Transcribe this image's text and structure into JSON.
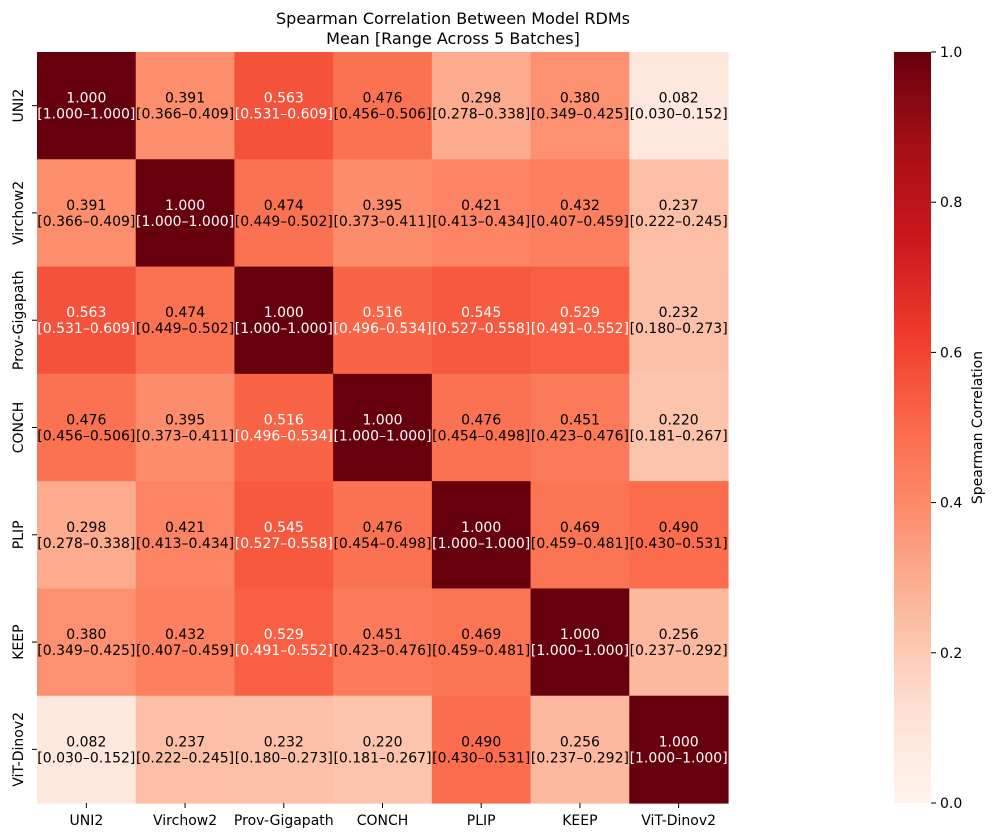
{
  "chart_data": {
    "type": "heatmap",
    "title": "Spearman Correlation Between Model RDMs",
    "subtitle": "Mean [Range Across 5 Batches]",
    "labels": [
      "UNI2",
      "Virchow2",
      "Prov-Gigapath",
      "CONCH",
      "PLIP",
      "KEEP",
      "ViT-Dinov2"
    ],
    "matrix": [
      [
        1.0,
        0.391,
        0.563,
        0.476,
        0.298,
        0.38,
        0.082
      ],
      [
        0.391,
        1.0,
        0.474,
        0.395,
        0.421,
        0.432,
        0.237
      ],
      [
        0.563,
        0.474,
        1.0,
        0.516,
        0.545,
        0.529,
        0.232
      ],
      [
        0.476,
        0.395,
        0.516,
        1.0,
        0.476,
        0.451,
        0.22
      ],
      [
        0.298,
        0.421,
        0.545,
        0.476,
        1.0,
        0.469,
        0.49
      ],
      [
        0.38,
        0.432,
        0.529,
        0.451,
        0.469,
        1.0,
        0.256
      ],
      [
        0.082,
        0.237,
        0.232,
        0.22,
        0.49,
        0.256,
        1.0
      ]
    ],
    "value_labels": [
      [
        "1.000",
        "0.391",
        "0.563",
        "0.476",
        "0.298",
        "0.380",
        "0.082"
      ],
      [
        "0.391",
        "1.000",
        "0.474",
        "0.395",
        "0.421",
        "0.432",
        "0.237"
      ],
      [
        "0.563",
        "0.474",
        "1.000",
        "0.516",
        "0.545",
        "0.529",
        "0.232"
      ],
      [
        "0.476",
        "0.395",
        "0.516",
        "1.000",
        "0.476",
        "0.451",
        "0.220"
      ],
      [
        "0.298",
        "0.421",
        "0.545",
        "0.476",
        "1.000",
        "0.469",
        "0.490"
      ],
      [
        "0.380",
        "0.432",
        "0.529",
        "0.451",
        "0.469",
        "1.000",
        "0.256"
      ],
      [
        "0.082",
        "0.237",
        "0.232",
        "0.220",
        "0.490",
        "0.256",
        "1.000"
      ]
    ],
    "ranges": [
      [
        "[1.000–1.000]",
        "[0.366–0.409]",
        "[0.531–0.609]",
        "[0.456–0.506]",
        "[0.278–0.338]",
        "[0.349–0.425]",
        "[0.030–0.152]"
      ],
      [
        "[0.366–0.409]",
        "[1.000–1.000]",
        "[0.449–0.502]",
        "[0.373–0.411]",
        "[0.413–0.434]",
        "[0.407–0.459]",
        "[0.222–0.245]"
      ],
      [
        "[0.531–0.609]",
        "[0.449–0.502]",
        "[1.000–1.000]",
        "[0.496–0.534]",
        "[0.527–0.558]",
        "[0.491–0.552]",
        "[0.180–0.273]"
      ],
      [
        "[0.456–0.506]",
        "[0.373–0.411]",
        "[0.496–0.534]",
        "[1.000–1.000]",
        "[0.454–0.498]",
        "[0.423–0.476]",
        "[0.181–0.267]"
      ],
      [
        "[0.278–0.338]",
        "[0.413–0.434]",
        "[0.527–0.558]",
        "[0.454–0.498]",
        "[1.000–1.000]",
        "[0.459–0.481]",
        "[0.430–0.531]"
      ],
      [
        "[0.349–0.425]",
        "[0.407–0.459]",
        "[0.491–0.552]",
        "[0.423–0.476]",
        "[0.459–0.481]",
        "[1.000–1.000]",
        "[0.237–0.292]"
      ],
      [
        "[0.030–0.152]",
        "[0.222–0.245]",
        "[0.180–0.273]",
        "[0.181–0.267]",
        "[0.430–0.531]",
        "[0.237–0.292]",
        "[1.000–1.000]"
      ]
    ],
    "colorbar": {
      "label": "Spearman Correlation",
      "range": [
        0.0,
        1.0
      ],
      "ticks": [
        0.0,
        0.2,
        0.4,
        0.6,
        0.8,
        1.0
      ],
      "tick_labels": [
        "0.0",
        "0.2",
        "0.4",
        "0.6",
        "0.8",
        "1.0"
      ],
      "colormap": "Reds"
    },
    "text_colors": {
      "dark": "#000000",
      "light": "#ffffff"
    }
  }
}
